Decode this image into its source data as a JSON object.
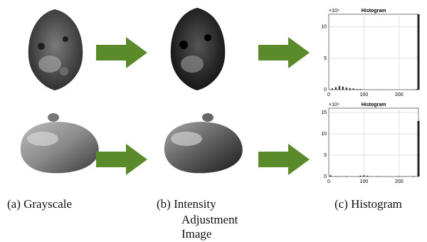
{
  "captions": {
    "a": "(a)  Grayscale",
    "b_line1": "(b)  Intensity",
    "b_line2": "Adjustment",
    "b_line3": "Image",
    "c": "(c)  Histogram"
  },
  "colors": {
    "arrow": "#5a8a2a",
    "grid": "#d9d9d9",
    "axis": "#555555",
    "bar": "#222222"
  },
  "histograms": [
    {
      "title": "Histogram",
      "multiplier": "×10⁴",
      "y_ticks": [
        "0",
        "5",
        "10"
      ],
      "x_ticks": [
        "0",
        "100",
        "200"
      ],
      "chart_data": {
        "type": "bar",
        "title": "Histogram",
        "xlim": [
          0,
          255
        ],
        "ylim": [
          0,
          12
        ],
        "y_scale_label": "×10^4",
        "bins_x": [
          10,
          20,
          30,
          40,
          50,
          60,
          70,
          80,
          90,
          100,
          150,
          200,
          240,
          250,
          255
        ],
        "bins_y": [
          0.2,
          0.4,
          0.6,
          0.5,
          0.35,
          0.25,
          0.2,
          0.1,
          0.1,
          0.05,
          0.02,
          0.02,
          0.05,
          0.1,
          12
        ]
      }
    },
    {
      "title": "Histogram",
      "multiplier": "×10⁴",
      "y_ticks": [
        "0",
        "5",
        "10",
        "15"
      ],
      "x_ticks": [
        "0",
        "100",
        "200"
      ],
      "chart_data": {
        "type": "bar",
        "title": "Histogram",
        "xlim": [
          0,
          255
        ],
        "ylim": [
          0,
          16
        ],
        "y_scale_label": "×10^4",
        "bins_x": [
          5,
          20,
          50,
          90,
          100,
          110,
          140,
          200,
          240,
          255
        ],
        "bins_y": [
          0.3,
          0.1,
          0.1,
          0.2,
          0.3,
          0.2,
          0.1,
          0.1,
          0.1,
          13
        ]
      }
    }
  ]
}
